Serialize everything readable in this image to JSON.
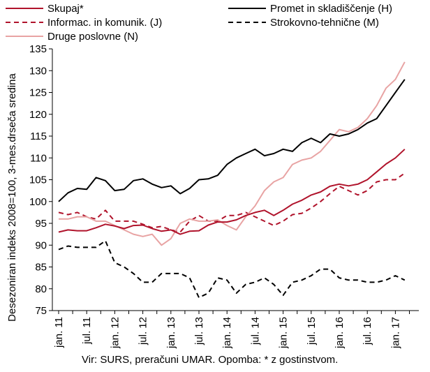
{
  "chart_data": {
    "type": "line",
    "title": "",
    "xlabel": "",
    "ylabel": "Desezoniran indeks 2008=100, 3-mes.drseča sredina",
    "ylim": [
      75,
      135
    ],
    "yticks": [
      75,
      80,
      85,
      90,
      95,
      100,
      105,
      110,
      115,
      120,
      125,
      130,
      135
    ],
    "grid": false,
    "legend_position": "top",
    "x_start": "2011-01",
    "x_end": "2017-05",
    "xticks": [
      {
        "x": "2011-01",
        "label": "jan. 11"
      },
      {
        "x": "2011-07",
        "label": "jul. 11"
      },
      {
        "x": "2012-01",
        "label": "jan. 12"
      },
      {
        "x": "2012-07",
        "label": "jul. 12"
      },
      {
        "x": "2013-01",
        "label": "jan. 13"
      },
      {
        "x": "2013-07",
        "label": "jul. 13"
      },
      {
        "x": "2014-01",
        "label": "jan. 14"
      },
      {
        "x": "2014-07",
        "label": "jul. 14"
      },
      {
        "x": "2015-01",
        "label": "jan. 15"
      },
      {
        "x": "2015-07",
        "label": "jul. 15"
      },
      {
        "x": "2016-01",
        "label": "jan. 16"
      },
      {
        "x": "2016-07",
        "label": "jul. 16"
      },
      {
        "x": "2017-01",
        "label": "jan. 17"
      }
    ],
    "source_note": "Vir: SURS, preračuni UMAR. Opomba: * z gostinstvom.",
    "series": [
      {
        "name": "Skupaj*",
        "color": "#b0132b",
        "dash": "solid",
        "points": [
          [
            "2011-01",
            93.0
          ],
          [
            "2011-03",
            93.5
          ],
          [
            "2011-05",
            93.3
          ],
          [
            "2011-07",
            93.3
          ],
          [
            "2011-09",
            94.0
          ],
          [
            "2011-11",
            94.8
          ],
          [
            "2012-01",
            94.4
          ],
          [
            "2012-03",
            93.8
          ],
          [
            "2012-05",
            94.5
          ],
          [
            "2012-07",
            94.6
          ],
          [
            "2012-09",
            93.8
          ],
          [
            "2012-11",
            93.2
          ],
          [
            "2013-01",
            93.5
          ],
          [
            "2013-03",
            92.5
          ],
          [
            "2013-05",
            93.2
          ],
          [
            "2013-07",
            93.3
          ],
          [
            "2013-09",
            94.6
          ],
          [
            "2013-11",
            95.3
          ],
          [
            "2014-01",
            95.3
          ],
          [
            "2014-03",
            95.8
          ],
          [
            "2014-05",
            96.8
          ],
          [
            "2014-07",
            97.5
          ],
          [
            "2014-09",
            98.0
          ],
          [
            "2014-11",
            96.8
          ],
          [
            "2015-01",
            98.0
          ],
          [
            "2015-03",
            99.4
          ],
          [
            "2015-05",
            100.3
          ],
          [
            "2015-07",
            101.5
          ],
          [
            "2015-09",
            102.2
          ],
          [
            "2015-11",
            103.5
          ],
          [
            "2016-01",
            104.0
          ],
          [
            "2016-03",
            103.6
          ],
          [
            "2016-05",
            104.0
          ],
          [
            "2016-07",
            105.0
          ],
          [
            "2016-09",
            106.8
          ],
          [
            "2016-11",
            108.6
          ],
          [
            "2017-01",
            110.0
          ],
          [
            "2017-03",
            112.0
          ]
        ]
      },
      {
        "name": "Promet in skladiščenje (H)",
        "color": "#000000",
        "dash": "solid",
        "points": [
          [
            "2011-01",
            100.0
          ],
          [
            "2011-03",
            102.0
          ],
          [
            "2011-05",
            103.0
          ],
          [
            "2011-07",
            102.8
          ],
          [
            "2011-09",
            105.5
          ],
          [
            "2011-11",
            104.8
          ],
          [
            "2012-01",
            102.5
          ],
          [
            "2012-03",
            102.8
          ],
          [
            "2012-05",
            104.8
          ],
          [
            "2012-07",
            105.2
          ],
          [
            "2012-09",
            104.0
          ],
          [
            "2012-11",
            103.2
          ],
          [
            "2013-01",
            103.6
          ],
          [
            "2013-03",
            101.8
          ],
          [
            "2013-05",
            103.0
          ],
          [
            "2013-07",
            105.0
          ],
          [
            "2013-09",
            105.2
          ],
          [
            "2013-11",
            106.0
          ],
          [
            "2014-01",
            108.5
          ],
          [
            "2014-03",
            110.0
          ],
          [
            "2014-05",
            111.0
          ],
          [
            "2014-07",
            112.0
          ],
          [
            "2014-09",
            110.5
          ],
          [
            "2014-11",
            111.0
          ],
          [
            "2015-01",
            112.0
          ],
          [
            "2015-03",
            111.5
          ],
          [
            "2015-05",
            113.5
          ],
          [
            "2015-07",
            114.5
          ],
          [
            "2015-09",
            113.5
          ],
          [
            "2015-11",
            115.5
          ],
          [
            "2016-01",
            115.0
          ],
          [
            "2016-03",
            115.5
          ],
          [
            "2016-05",
            116.5
          ],
          [
            "2016-07",
            118.0
          ],
          [
            "2016-09",
            119.0
          ],
          [
            "2016-11",
            122.0
          ],
          [
            "2017-01",
            125.0
          ],
          [
            "2017-03",
            128.0
          ]
        ]
      },
      {
        "name": "Informac. in komunik. (J)",
        "color": "#b0132b",
        "dash": "dashed",
        "points": [
          [
            "2011-01",
            97.5
          ],
          [
            "2011-03",
            97.0
          ],
          [
            "2011-05",
            97.5
          ],
          [
            "2011-07",
            96.5
          ],
          [
            "2011-09",
            96.0
          ],
          [
            "2011-11",
            98.0
          ],
          [
            "2012-01",
            95.5
          ],
          [
            "2012-03",
            95.5
          ],
          [
            "2012-05",
            95.5
          ],
          [
            "2012-07",
            94.8
          ],
          [
            "2012-09",
            94.0
          ],
          [
            "2012-11",
            94.3
          ],
          [
            "2013-01",
            93.5
          ],
          [
            "2013-03",
            93.0
          ],
          [
            "2013-05",
            95.5
          ],
          [
            "2013-07",
            96.8
          ],
          [
            "2013-09",
            95.5
          ],
          [
            "2013-11",
            95.5
          ],
          [
            "2014-01",
            96.8
          ],
          [
            "2014-03",
            96.8
          ],
          [
            "2014-05",
            97.5
          ],
          [
            "2014-07",
            96.5
          ],
          [
            "2014-09",
            95.5
          ],
          [
            "2014-11",
            94.5
          ],
          [
            "2015-01",
            95.5
          ],
          [
            "2015-03",
            97.0
          ],
          [
            "2015-05",
            97.3
          ],
          [
            "2015-07",
            98.5
          ],
          [
            "2015-09",
            100.0
          ],
          [
            "2015-11",
            101.8
          ],
          [
            "2016-01",
            103.5
          ],
          [
            "2016-03",
            102.5
          ],
          [
            "2016-05",
            101.5
          ],
          [
            "2016-07",
            102.5
          ],
          [
            "2016-09",
            104.5
          ],
          [
            "2016-11",
            105.0
          ],
          [
            "2017-01",
            105.0
          ],
          [
            "2017-03",
            106.5
          ]
        ]
      },
      {
        "name": "Strokovno-tehnične (M)",
        "color": "#000000",
        "dash": "dashed",
        "points": [
          [
            "2011-01",
            89.0
          ],
          [
            "2011-03",
            89.8
          ],
          [
            "2011-05",
            89.5
          ],
          [
            "2011-07",
            89.5
          ],
          [
            "2011-09",
            89.5
          ],
          [
            "2011-11",
            91.0
          ],
          [
            "2012-01",
            86.0
          ],
          [
            "2012-03",
            85.0
          ],
          [
            "2012-05",
            83.5
          ],
          [
            "2012-07",
            81.5
          ],
          [
            "2012-09",
            81.5
          ],
          [
            "2012-11",
            83.5
          ],
          [
            "2013-01",
            83.5
          ],
          [
            "2013-03",
            83.5
          ],
          [
            "2013-05",
            82.5
          ],
          [
            "2013-07",
            78.0
          ],
          [
            "2013-09",
            79.0
          ],
          [
            "2013-11",
            82.5
          ],
          [
            "2014-01",
            82.0
          ],
          [
            "2014-03",
            79.0
          ],
          [
            "2014-05",
            81.0
          ],
          [
            "2014-07",
            81.5
          ],
          [
            "2014-09",
            82.5
          ],
          [
            "2014-11",
            81.0
          ],
          [
            "2015-01",
            78.5
          ],
          [
            "2015-03",
            81.5
          ],
          [
            "2015-05",
            82.0
          ],
          [
            "2015-07",
            83.0
          ],
          [
            "2015-09",
            84.5
          ],
          [
            "2015-11",
            84.5
          ],
          [
            "2016-01",
            82.5
          ],
          [
            "2016-03",
            82.0
          ],
          [
            "2016-05",
            82.0
          ],
          [
            "2016-07",
            81.5
          ],
          [
            "2016-09",
            81.5
          ],
          [
            "2016-11",
            82.0
          ],
          [
            "2017-01",
            83.0
          ],
          [
            "2017-03",
            82.0
          ]
        ]
      },
      {
        "name": "Druge poslovne (N)",
        "color": "#e8a3a3",
        "dash": "solid",
        "points": [
          [
            "2011-01",
            96.0
          ],
          [
            "2011-03",
            96.0
          ],
          [
            "2011-05",
            96.5
          ],
          [
            "2011-07",
            96.5
          ],
          [
            "2011-09",
            95.5
          ],
          [
            "2011-11",
            95.5
          ],
          [
            "2012-01",
            94.5
          ],
          [
            "2012-03",
            93.5
          ],
          [
            "2012-05",
            92.5
          ],
          [
            "2012-07",
            92.0
          ],
          [
            "2012-09",
            92.5
          ],
          [
            "2012-11",
            90.0
          ],
          [
            "2013-01",
            91.5
          ],
          [
            "2013-03",
            95.0
          ],
          [
            "2013-05",
            96.0
          ],
          [
            "2013-07",
            95.5
          ],
          [
            "2013-09",
            95.5
          ],
          [
            "2013-11",
            95.8
          ],
          [
            "2014-01",
            94.5
          ],
          [
            "2014-03",
            93.5
          ],
          [
            "2014-05",
            96.5
          ],
          [
            "2014-07",
            99.0
          ],
          [
            "2014-09",
            102.5
          ],
          [
            "2014-11",
            104.5
          ],
          [
            "2015-01",
            105.5
          ],
          [
            "2015-03",
            108.5
          ],
          [
            "2015-05",
            109.5
          ],
          [
            "2015-07",
            110.0
          ],
          [
            "2015-09",
            111.5
          ],
          [
            "2015-11",
            114.0
          ],
          [
            "2016-01",
            116.5
          ],
          [
            "2016-03",
            116.0
          ],
          [
            "2016-05",
            117.0
          ],
          [
            "2016-07",
            119.0
          ],
          [
            "2016-09",
            122.0
          ],
          [
            "2016-11",
            126.0
          ],
          [
            "2017-01",
            128.0
          ],
          [
            "2017-03",
            132.0
          ]
        ]
      }
    ]
  }
}
